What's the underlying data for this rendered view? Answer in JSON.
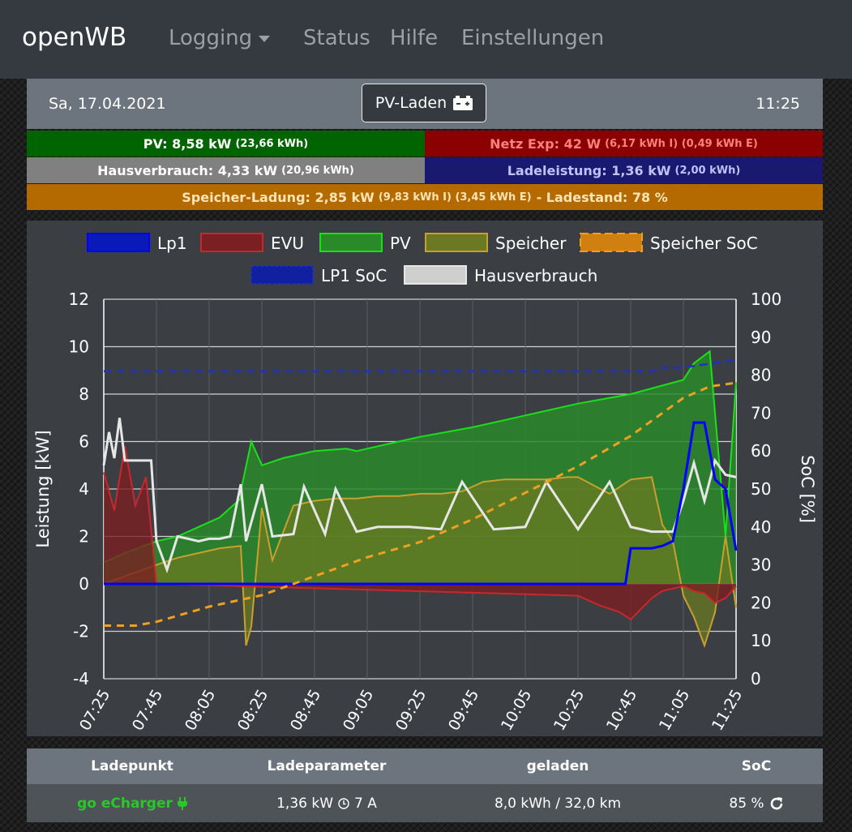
{
  "navbar": {
    "brand": "openWB",
    "items": [
      {
        "label": "Logging",
        "dropdown": true
      },
      {
        "label": "Status"
      },
      {
        "label": "Hilfe"
      },
      {
        "label": "Einstellungen"
      }
    ]
  },
  "header": {
    "date": "Sa, 17.04.2021",
    "mode": "PV-Laden",
    "mode_icon": "car-battery-icon",
    "time": "11:25"
  },
  "power_bars": {
    "pv": {
      "label": "PV: 8,58 kW",
      "detail": "(23,66 kWh)",
      "bg": "#006400",
      "fg": "#ffffff"
    },
    "netz": {
      "label": "Netz Exp: 42 W",
      "detail": "(6,17 kWh I) (0,49 kWh E)",
      "bg": "#8b0000",
      "fg": "#ff8080"
    },
    "haus": {
      "label": "Hausverbrauch: 4,33 kW",
      "detail": "(20,96 kWh)",
      "bg": "#808080",
      "fg": "#ffffff"
    },
    "lade": {
      "label": "Ladeleistung: 1,36 kW",
      "detail": "(2,00 kWh)",
      "bg": "#191970",
      "fg": "#c0c0ff"
    },
    "speicher": {
      "label": "Speicher-Ladung: 2,85 kW",
      "detail": "(9,83 kWh I) (3,45 kWh E)",
      "suffix": "- Ladestand: 78 %",
      "bg": "#b56a00",
      "fg": "#ffe4b5"
    }
  },
  "chart_data": {
    "type": "area",
    "ylabel": "Leistung [kW]",
    "y2label": "SoC [%]",
    "ylim": [
      -4,
      12
    ],
    "y2lim": [
      0,
      100
    ],
    "yticks": [
      "-4",
      "-2",
      "0",
      "2",
      "4",
      "6",
      "8",
      "10",
      "12"
    ],
    "y2ticks": [
      "0",
      "10",
      "20",
      "30",
      "40",
      "50",
      "60",
      "70",
      "80",
      "90",
      "100"
    ],
    "xticks": [
      "07:25",
      "07:45",
      "08:05",
      "08:25",
      "08:45",
      "09:05",
      "09:25",
      "09:45",
      "10:05",
      "10:25",
      "10:45",
      "11:05",
      "11:25"
    ],
    "legend": [
      {
        "name": "Lp1",
        "color": "#0000ff",
        "fill": "#0a1ab8",
        "style": "solid"
      },
      {
        "name": "EVU",
        "color": "#c8282d",
        "fill": "#7a1f22",
        "style": "solid"
      },
      {
        "name": "PV",
        "color": "#19e019",
        "fill": "#2a8a2a",
        "style": "solid"
      },
      {
        "name": "Speicher",
        "color": "#c8a030",
        "fill": "#6b7a22",
        "style": "solid"
      },
      {
        "name": "Speicher SoC",
        "color": "#f0a020",
        "fill": "#d08010",
        "style": "dashed"
      },
      {
        "name": "LP1 SoC",
        "color": "#2030c0",
        "fill": "#1020a0",
        "style": "dotted"
      },
      {
        "name": "Hausverbrauch",
        "color": "#e6e6e6",
        "fill": "#cfcfcf",
        "style": "solid"
      }
    ],
    "series": [
      {
        "name": "PV",
        "x_min": [
          0,
          4,
          10,
          14,
          16,
          18,
          22,
          24,
          26,
          26,
          28,
          30,
          34,
          40,
          46,
          48,
          52,
          60,
          70,
          80,
          90,
          100,
          110,
          112,
          115,
          118,
          120
        ],
        "y": [
          0.9,
          1.3,
          1.8,
          2.0,
          2.2,
          2.4,
          2.8,
          3.2,
          3.6,
          3.9,
          6.0,
          5.0,
          5.3,
          5.6,
          5.7,
          5.6,
          5.8,
          6.2,
          6.6,
          7.1,
          7.6,
          8.0,
          8.6,
          9.3,
          9.8,
          2.0,
          8.5
        ]
      },
      {
        "name": "Hausverbrauch",
        "x_min": [
          0,
          1,
          2,
          3,
          4,
          5,
          6,
          7,
          8,
          9,
          10,
          12,
          14,
          16,
          18,
          20,
          22,
          24,
          26,
          27,
          30,
          32,
          36,
          38,
          42,
          44,
          48,
          52,
          58,
          64,
          68,
          74,
          80,
          84,
          90,
          96,
          100,
          104,
          108,
          110,
          112,
          114,
          116,
          118,
          120
        ],
        "y": [
          5.0,
          6.4,
          5.3,
          7.0,
          5.2,
          5.2,
          5.2,
          5.2,
          5.2,
          5.2,
          1.8,
          0.6,
          2.0,
          1.9,
          1.8,
          1.9,
          1.9,
          2.0,
          4.2,
          1.8,
          4.2,
          2.0,
          2.1,
          4.1,
          2.1,
          4.0,
          2.2,
          2.4,
          2.4,
          2.3,
          4.3,
          2.3,
          2.4,
          4.3,
          2.3,
          4.3,
          2.4,
          2.2,
          2.2,
          3.5,
          5.1,
          3.5,
          5.2,
          4.6,
          4.5
        ]
      },
      {
        "name": "EVU",
        "x_min": [
          0,
          2,
          4,
          6,
          8,
          10,
          11,
          90,
          92,
          94,
          98,
          100,
          104,
          106,
          108,
          110,
          112,
          114,
          116,
          118,
          120
        ],
        "y": [
          4.7,
          3.1,
          5.8,
          3.3,
          4.5,
          0.0,
          0.0,
          -0.5,
          -0.7,
          -0.9,
          -1.2,
          -1.5,
          -0.6,
          -0.3,
          -0.2,
          -0.1,
          -0.3,
          -0.4,
          -0.8,
          -0.6,
          -0.1
        ]
      },
      {
        "name": "Speicher",
        "x_min": [
          0,
          10,
          14,
          18,
          22,
          26,
          27,
          28,
          30,
          32,
          36,
          40,
          44,
          48,
          52,
          56,
          60,
          64,
          68,
          72,
          76,
          80,
          84,
          88,
          90,
          96,
          100,
          104,
          106,
          108,
          110,
          112,
          114,
          116,
          118,
          120
        ],
        "y": [
          0.0,
          0.8,
          1.1,
          1.3,
          1.5,
          1.6,
          -2.6,
          -1.8,
          3.2,
          1.0,
          3.3,
          3.5,
          3.6,
          3.6,
          3.7,
          3.7,
          3.8,
          3.8,
          3.9,
          4.3,
          4.4,
          4.4,
          4.4,
          4.5,
          4.5,
          3.8,
          4.4,
          4.5,
          2.5,
          1.8,
          -0.5,
          -1.4,
          -2.6,
          -1.2,
          2.0,
          -1.0
        ]
      },
      {
        "name": "Lp1",
        "x_min": [
          0,
          20,
          40,
          60,
          80,
          99,
          100,
          104,
          106,
          108,
          110,
          112,
          114,
          116,
          118,
          120
        ],
        "y": [
          0.0,
          0.0,
          0.0,
          0.0,
          0.0,
          0.0,
          1.5,
          1.5,
          1.6,
          1.8,
          4.0,
          6.8,
          6.8,
          4.4,
          4.0,
          1.4
        ]
      },
      {
        "name": "Speicher SoC",
        "x_min": [
          0,
          6,
          10,
          20,
          30,
          40,
          50,
          60,
          70,
          80,
          90,
          100,
          105,
          110,
          115,
          120
        ],
        "y": [
          14,
          14,
          15,
          19,
          22,
          27,
          32,
          36,
          42,
          49,
          56,
          64,
          69,
          74,
          77,
          78
        ]
      },
      {
        "name": "LP1 SoC",
        "x_min": [
          0,
          30,
          60,
          90,
          104,
          106,
          110,
          120
        ],
        "y": [
          81,
          81,
          81,
          81,
          81,
          82,
          82,
          84
        ]
      }
    ]
  },
  "table": {
    "headers": [
      "Ladepunkt",
      "Ladeparameter",
      "geladen",
      "SoC"
    ],
    "rows": [
      {
        "ladepunkt": "go eCharger",
        "ladepunkt_icon": "plug-icon",
        "ladepunkt_color": "#28c828",
        "parameter": "1,36 kW",
        "parameter_icon": "clock-icon",
        "parameter_extra": "7 A",
        "geladen": "8,0 kWh / 32,0 km",
        "soc": "85 %",
        "soc_icon": "refresh-icon"
      }
    ]
  }
}
